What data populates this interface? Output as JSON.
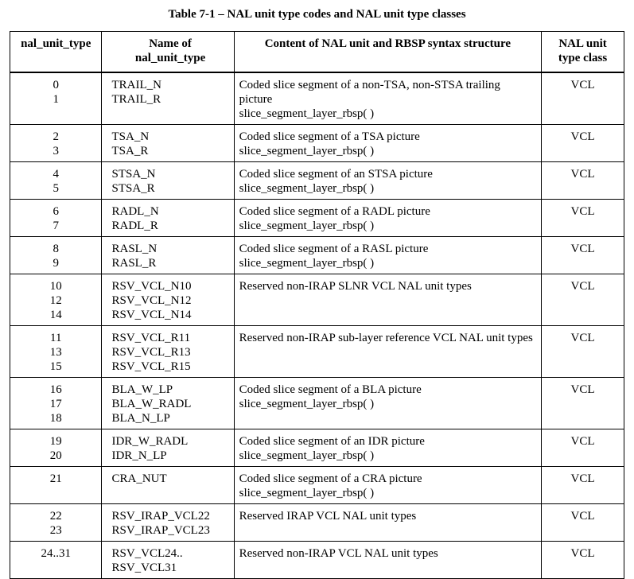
{
  "title": "Table 7-1 – NAL unit type codes and NAL unit type classes",
  "header": [
    [
      "nal_unit_type"
    ],
    [
      "Name of",
      "nal_unit_type"
    ],
    [
      "Content of NAL unit and RBSP syntax structure"
    ],
    [
      "NAL unit",
      "type class"
    ]
  ],
  "rows": [
    {
      "codes": [
        "0",
        "1"
      ],
      "names": [
        "TRAIL_N",
        "TRAIL_R"
      ],
      "content": [
        "Coded slice segment of a non-TSA, non-STSA trailing picture",
        "slice_segment_layer_rbsp( )"
      ],
      "class": "VCL"
    },
    {
      "codes": [
        "2",
        "3"
      ],
      "names": [
        "TSA_N",
        "TSA_R"
      ],
      "content": [
        "Coded slice segment of a TSA picture",
        "slice_segment_layer_rbsp( )"
      ],
      "class": "VCL"
    },
    {
      "codes": [
        "4",
        "5"
      ],
      "names": [
        "STSA_N",
        "STSA_R"
      ],
      "content": [
        "Coded slice segment of an STSA picture",
        "slice_segment_layer_rbsp( )"
      ],
      "class": "VCL"
    },
    {
      "codes": [
        "6",
        "7"
      ],
      "names": [
        "RADL_N",
        "RADL_R"
      ],
      "content": [
        "Coded slice segment of a RADL picture",
        "slice_segment_layer_rbsp( )"
      ],
      "class": "VCL"
    },
    {
      "codes": [
        "8",
        "9"
      ],
      "names": [
        "RASL_N",
        "RASL_R"
      ],
      "content": [
        "Coded slice segment of a RASL picture",
        "slice_segment_layer_rbsp( )"
      ],
      "class": "VCL"
    },
    {
      "codes": [
        "10",
        "12",
        "14"
      ],
      "names": [
        "RSV_VCL_N10",
        "RSV_VCL_N12",
        "RSV_VCL_N14"
      ],
      "content": [
        "Reserved non-IRAP SLNR VCL NAL unit types"
      ],
      "class": "VCL"
    },
    {
      "codes": [
        "11",
        "13",
        "15"
      ],
      "names": [
        "RSV_VCL_R11",
        "RSV_VCL_R13",
        "RSV_VCL_R15"
      ],
      "content": [
        "Reserved non-IRAP sub-layer reference VCL NAL unit types"
      ],
      "class": "VCL"
    },
    {
      "codes": [
        "16",
        "17",
        "18"
      ],
      "names": [
        "BLA_W_LP",
        "BLA_W_RADL",
        "BLA_N_LP"
      ],
      "content": [
        "Coded slice segment of a BLA picture",
        "slice_segment_layer_rbsp( )"
      ],
      "class": "VCL"
    },
    {
      "codes": [
        "19",
        "20"
      ],
      "names": [
        "IDR_W_RADL",
        "IDR_N_LP"
      ],
      "content": [
        "Coded slice segment of an IDR picture",
        "slice_segment_layer_rbsp( )"
      ],
      "class": "VCL"
    },
    {
      "codes": [
        "21"
      ],
      "names": [
        "CRA_NUT"
      ],
      "content": [
        "Coded slice segment of a CRA picture",
        "slice_segment_layer_rbsp( )"
      ],
      "class": "VCL"
    },
    {
      "codes": [
        "22",
        "23"
      ],
      "names": [
        "RSV_IRAP_VCL22",
        "RSV_IRAP_VCL23"
      ],
      "content": [
        "Reserved IRAP VCL NAL unit types"
      ],
      "class": "VCL"
    },
    {
      "codes": [
        "24..31"
      ],
      "names": [
        "RSV_VCL24..",
        "RSV_VCL31"
      ],
      "content": [
        "Reserved non-IRAP VCL NAL unit types"
      ],
      "class": "VCL"
    }
  ]
}
